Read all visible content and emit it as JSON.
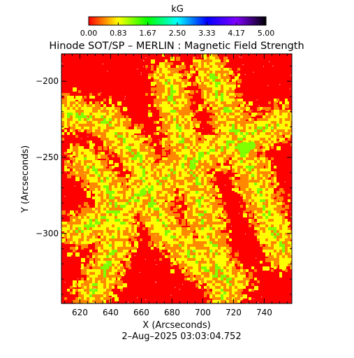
{
  "chart_data": {
    "type": "heatmap",
    "title": "Hinode SOT/SP – MERLIN : Magnetic Field Strength",
    "xlabel": "X (Arcseconds)",
    "ylabel": "Y (Arcseconds)",
    "timestamp": "2–Aug–2025 03:03:04.752",
    "colorbar": {
      "unit": "kG",
      "tick_labels": [
        "0.00",
        "0.83",
        "1.67",
        "2.50",
        "3.33",
        "4.17",
        "5.00"
      ],
      "range": [
        0,
        5
      ],
      "colors": [
        "#ff0000",
        "#ffff00",
        "#00ff00",
        "#00ffff",
        "#0000ff",
        "#8000ff",
        "#000000"
      ]
    },
    "xlim": [
      608,
      758
    ],
    "ylim": [
      -346,
      -182
    ],
    "x_ticks": [
      620,
      640,
      660,
      680,
      700,
      720,
      740
    ],
    "x_tick_labels": [
      "620",
      "640",
      "660",
      "680",
      "700",
      "720",
      "740"
    ],
    "y_ticks": [
      -200,
      -250,
      -300
    ],
    "y_tick_labels": [
      "−200",
      "−250",
      "−300"
    ],
    "field_colors": {
      "background": "#ff0000",
      "weak": "#ff8800",
      "moderate": "#ffff00",
      "strong": "#7fff00"
    },
    "grid": false,
    "legend": "colorbar-top"
  }
}
